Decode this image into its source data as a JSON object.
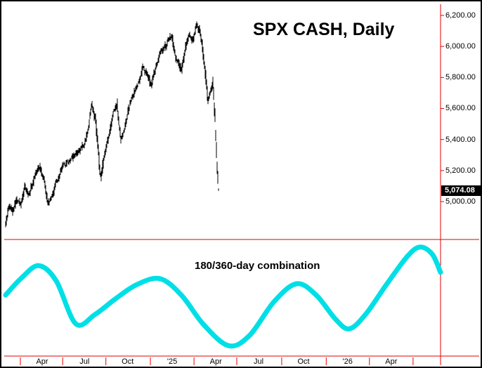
{
  "window": {
    "background": "#ffffff",
    "border": "#000000"
  },
  "chart_data": {
    "type": "line",
    "title": "SPX CASH, Daily",
    "cycle_label": "180/360-day combination",
    "panels": [
      "price",
      "cycle-indicator"
    ],
    "y_axis": {
      "ticks": [
        "6,200.00",
        "6,000.00",
        "5,800.00",
        "5,600.00",
        "5,400.00",
        "5,200.00",
        "5,000.00"
      ],
      "tick_values": [
        6200,
        6000,
        5800,
        5600,
        5400,
        5200,
        5000
      ],
      "range": [
        4756,
        6272
      ],
      "last_price": 5074.08,
      "last_price_label": "5,074.08"
    },
    "x_axis": {
      "ticks": [
        "Apr",
        "Jul",
        "Oct",
        "'25",
        "Apr",
        "Jul",
        "Oct",
        "'26",
        "Apr"
      ],
      "tick_positions": [
        0.087,
        0.184,
        0.283,
        0.385,
        0.485,
        0.583,
        0.686,
        0.787,
        0.887
      ],
      "separator_positions": [
        0.037,
        0.134,
        0.233,
        0.335,
        0.435,
        0.533,
        0.636,
        0.738,
        0.837,
        0.937
      ]
    },
    "price_series": {
      "name": "SPX CASH daily bars",
      "points": [
        [
          0.003,
          4850
        ],
        [
          0.011,
          4960
        ],
        [
          0.019,
          4900
        ],
        [
          0.029,
          5010
        ],
        [
          0.039,
          4985
        ],
        [
          0.048,
          5110
        ],
        [
          0.058,
          5060
        ],
        [
          0.071,
          5180
        ],
        [
          0.082,
          5230
        ],
        [
          0.092,
          5150
        ],
        [
          0.1,
          4990
        ],
        [
          0.11,
          5020
        ],
        [
          0.119,
          5110
        ],
        [
          0.132,
          5200
        ],
        [
          0.143,
          5240
        ],
        [
          0.155,
          5270
        ],
        [
          0.164,
          5300
        ],
        [
          0.174,
          5340
        ],
        [
          0.184,
          5380
        ],
        [
          0.193,
          5480
        ],
        [
          0.201,
          5645
        ],
        [
          0.209,
          5530
        ],
        [
          0.221,
          5140
        ],
        [
          0.229,
          5300
        ],
        [
          0.24,
          5430
        ],
        [
          0.251,
          5600
        ],
        [
          0.259,
          5635
        ],
        [
          0.267,
          5415
        ],
        [
          0.277,
          5490
        ],
        [
          0.287,
          5620
        ],
        [
          0.296,
          5700
        ],
        [
          0.308,
          5765
        ],
        [
          0.319,
          5845
        ],
        [
          0.328,
          5815
        ],
        [
          0.338,
          5735
        ],
        [
          0.348,
          5875
        ],
        [
          0.357,
          5960
        ],
        [
          0.367,
          5995
        ],
        [
          0.377,
          6045
        ],
        [
          0.385,
          6080
        ],
        [
          0.393,
          5920
        ],
        [
          0.401,
          5885
        ],
        [
          0.407,
          5830
        ],
        [
          0.415,
          5995
        ],
        [
          0.424,
          6105
        ],
        [
          0.432,
          6040
        ],
        [
          0.44,
          6125
        ],
        [
          0.448,
          6090
        ],
        [
          0.454,
          5990
        ],
        [
          0.461,
          5830
        ],
        [
          0.467,
          5650
        ],
        [
          0.473,
          5705
        ],
        [
          0.478,
          5765
        ],
        [
          0.483,
          5560
        ],
        [
          0.488,
          5200
        ],
        [
          0.491,
          5074
        ]
      ]
    },
    "cycle_series": {
      "name": "180/360-day combination",
      "points": [
        [
          0.003,
          0.08
        ],
        [
          0.039,
          0.48
        ],
        [
          0.079,
          0.78
        ],
        [
          0.119,
          0.42
        ],
        [
          0.164,
          -0.6
        ],
        [
          0.208,
          -0.38
        ],
        [
          0.256,
          0.0
        ],
        [
          0.304,
          0.33
        ],
        [
          0.357,
          0.47
        ],
        [
          0.406,
          0.08
        ],
        [
          0.457,
          -0.62
        ],
        [
          0.514,
          -1.12
        ],
        [
          0.562,
          -0.88
        ],
        [
          0.618,
          -0.08
        ],
        [
          0.67,
          0.35
        ],
        [
          0.715,
          0.08
        ],
        [
          0.76,
          -0.5
        ],
        [
          0.791,
          -0.72
        ],
        [
          0.828,
          -0.38
        ],
        [
          0.876,
          0.33
        ],
        [
          0.924,
          1.0
        ],
        [
          0.953,
          1.22
        ],
        [
          0.981,
          1.05
        ],
        [
          1.0,
          0.62
        ]
      ]
    }
  },
  "colors": {
    "price_bars": "#000000",
    "cycle_line": "#00dfe6",
    "axis_red": "#e10000",
    "last_price_bg": "#000000",
    "last_price_text": "#ffffff"
  }
}
